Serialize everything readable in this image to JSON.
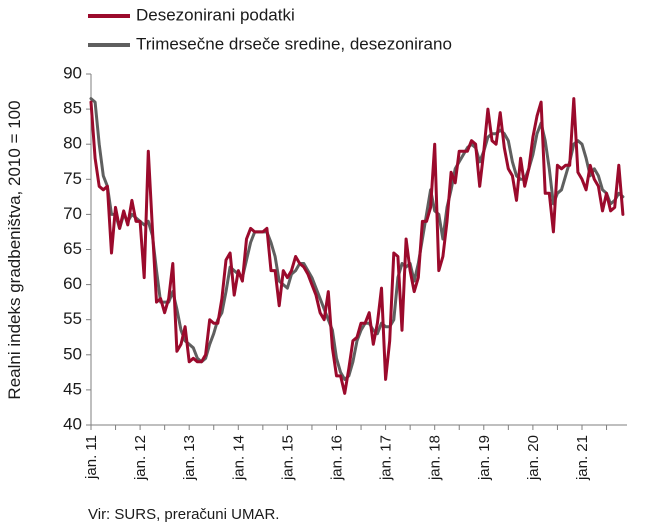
{
  "chart_data": {
    "type": "line",
    "title": "",
    "ylabel": "Realni indeks gradbeništva, 2010 = 100",
    "xlabel": "",
    "ylim": [
      40,
      90
    ],
    "yticks": [
      40,
      45,
      50,
      55,
      60,
      65,
      70,
      75,
      80,
      85,
      90
    ],
    "xlim": [
      0,
      131
    ],
    "xtick_labels": [
      "jan. 11",
      "jan. 12",
      "jan. 13",
      "jan. 14",
      "jan. 15",
      "jan. 16",
      "jan. 17",
      "jan. 18",
      "jan. 19",
      "jan. 20",
      "jan. 21"
    ],
    "xtick_positions": [
      0,
      12,
      24,
      36,
      48,
      60,
      72,
      84,
      96,
      108,
      120
    ],
    "legend_position": "top-left",
    "series": [
      {
        "name": "Desezonirani podatki",
        "color": "#9b0a2c",
        "values": [
          86,
          78,
          74,
          73.5,
          74,
          64.5,
          71,
          68,
          70.5,
          68.5,
          72,
          69,
          69,
          61,
          79,
          68,
          57.5,
          58,
          56,
          58,
          63,
          50.5,
          51.5,
          54,
          49,
          49.5,
          49,
          49,
          50,
          55,
          54.5,
          54.5,
          58,
          63.5,
          64.5,
          58.5,
          62,
          60.5,
          66.5,
          68,
          67.5,
          67.5,
          67.5,
          68,
          62,
          62,
          57,
          62,
          61,
          62,
          64,
          63,
          62.5,
          61.5,
          60,
          58.5,
          56,
          55,
          59,
          51,
          47,
          47,
          44.5,
          48,
          52,
          52.5,
          54.5,
          54.5,
          56,
          51.5,
          54.5,
          59.5,
          46.5,
          52,
          64.5,
          64,
          53.5,
          66.5,
          62,
          59,
          61,
          69,
          69,
          71,
          80,
          62,
          64,
          69,
          76,
          74.5,
          79,
          79,
          79,
          80.5,
          80,
          74,
          79,
          85,
          80.5,
          80,
          84.5,
          79.5,
          76.5,
          75.5,
          72,
          78,
          74,
          76.5,
          81,
          84,
          86,
          73,
          73,
          67.5,
          77,
          76.5,
          77,
          77,
          86.5,
          76,
          75,
          73.5,
          77,
          75,
          74,
          70.5,
          73,
          70.5,
          71,
          77,
          70
        ]
      },
      {
        "name": "Trimesečne drseče sredine, desezonirano",
        "color": "#5f5f5f",
        "values": [
          86.5,
          86,
          80,
          75.5,
          74,
          70,
          70,
          68,
          70,
          69,
          70,
          69.5,
          69,
          68.5,
          69,
          67,
          62,
          57.5,
          57.5,
          57.5,
          59,
          56.5,
          53.5,
          52,
          51.5,
          51,
          49.5,
          49,
          49.5,
          51.5,
          53,
          55,
          56,
          59,
          62.5,
          62,
          61.5,
          61,
          63.5,
          66,
          67.5,
          67.5,
          67.5,
          67.5,
          66,
          64,
          60.5,
          60,
          59.5,
          61.5,
          62,
          63,
          63,
          62,
          61,
          59.5,
          58,
          56.5,
          55,
          53.5,
          49.5,
          47.5,
          46.5,
          47,
          49,
          52,
          53.5,
          54.5,
          54.5,
          53.5,
          53,
          54.5,
          54,
          54,
          55,
          61,
          63,
          62.5,
          63,
          60.5,
          63,
          66.5,
          70,
          73.5,
          70.5,
          70,
          66.5,
          71,
          73.5,
          76.5,
          77.5,
          78.5,
          79.5,
          80,
          79.5,
          77.5,
          79,
          81,
          81.5,
          81.5,
          82,
          81.5,
          80.5,
          77.5,
          75.5,
          75,
          75,
          76.5,
          78.5,
          81.5,
          83,
          80.5,
          76.5,
          71.5,
          73,
          73.5,
          75.5,
          77.5,
          80,
          80.5,
          80,
          78,
          75.5,
          76.5,
          75.5,
          73.5,
          73,
          71.5,
          72,
          73,
          72.5
        ]
      }
    ]
  },
  "source_note": "Vir: SURS, preračuni UMAR."
}
